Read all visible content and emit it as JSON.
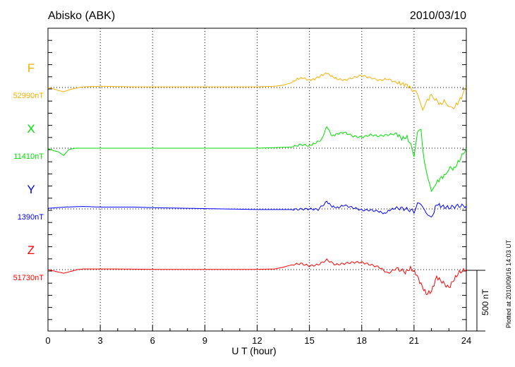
{
  "header": {
    "station": "Abisko (ABK)",
    "date": "2010/03/10"
  },
  "footer": {
    "plotted": "Plotted at 2010/09/16 14:03 UT"
  },
  "scale": {
    "label": "500 nT",
    "value_nT": 500
  },
  "chart_data": {
    "type": "line",
    "title": "Abisko (ABK)",
    "xlabel": "U T (hour)",
    "xlim": [
      0,
      24
    ],
    "xticks": [
      "0",
      "3",
      "6",
      "9",
      "12",
      "15",
      "18",
      "21",
      "24"
    ],
    "grid": "vertical dotted every 3 hours",
    "units": "nT deviation from baseline",
    "series": [
      {
        "name": "F",
        "baseline_label": "52990nT",
        "color": "#f5b000",
        "x": [
          0,
          0.3,
          0.6,
          0.9,
          1.2,
          1.6,
          2,
          3,
          5,
          8,
          10,
          12,
          13,
          13.5,
          14,
          14.3,
          14.6,
          15,
          15.3,
          15.7,
          16,
          16.3,
          16.6,
          17,
          17.5,
          18,
          18.5,
          19,
          19.5,
          20,
          20.3,
          20.6,
          20.9,
          21.1,
          21.3,
          21.5,
          21.7,
          22,
          22.2,
          22.5,
          22.8,
          23,
          23.2,
          23.5,
          23.8,
          24
        ],
        "y": [
          0,
          -10,
          -25,
          -35,
          -20,
          -5,
          5,
          10,
          5,
          5,
          5,
          5,
          10,
          20,
          40,
          70,
          80,
          60,
          70,
          100,
          120,
          90,
          70,
          60,
          80,
          100,
          80,
          60,
          70,
          40,
          30,
          20,
          -20,
          -40,
          -100,
          -170,
          -120,
          -60,
          -90,
          -140,
          -110,
          -150,
          -180,
          -130,
          -60,
          0
        ]
      },
      {
        "name": "X",
        "baseline_label": "11410nT",
        "color": "#00e000",
        "x": [
          0,
          0.3,
          0.6,
          0.9,
          1.2,
          1.6,
          2,
          4,
          6,
          8,
          10,
          12,
          13,
          14,
          14.5,
          15,
          15.3,
          15.7,
          16,
          16.3,
          16.6,
          17,
          17.5,
          18,
          18.5,
          19,
          19.5,
          20,
          20.3,
          20.6,
          20.9,
          21.0,
          21.2,
          21.4,
          21.5,
          21.6,
          21.8,
          22,
          22.2,
          22.5,
          22.8,
          23,
          23.3,
          23.6,
          24
        ],
        "y": [
          0,
          -20,
          -30,
          -60,
          -10,
          0,
          0,
          0,
          0,
          0,
          0,
          0,
          5,
          10,
          30,
          20,
          40,
          70,
          180,
          100,
          120,
          130,
          100,
          90,
          110,
          100,
          110,
          120,
          80,
          90,
          0,
          -60,
          120,
          150,
          0,
          -100,
          -250,
          -370,
          -300,
          -250,
          -220,
          -160,
          -170,
          -100,
          0
        ]
      },
      {
        "name": "Y",
        "baseline_label": "1390nT",
        "color": "#0000ff",
        "x": [
          0,
          0.5,
          1,
          2,
          3,
          4,
          5,
          6,
          8,
          10,
          12,
          13,
          14,
          15,
          15.5,
          16,
          16.3,
          16.6,
          17,
          17.5,
          18,
          18.5,
          19,
          19.3,
          19.6,
          20,
          20.5,
          21,
          21.2,
          21.4,
          21.6,
          21.8,
          22,
          22.3,
          22.6,
          23,
          23.5,
          24
        ],
        "y": [
          5,
          10,
          15,
          20,
          15,
          15,
          15,
          10,
          5,
          0,
          -5,
          -5,
          -5,
          0,
          -5,
          60,
          20,
          10,
          30,
          10,
          -10,
          -10,
          -20,
          -40,
          -10,
          10,
          0,
          -20,
          50,
          20,
          0,
          -40,
          -80,
          40,
          20,
          10,
          25,
          25
        ]
      },
      {
        "name": "Z",
        "baseline_label": "51730nT",
        "color": "#ff0000",
        "x": [
          0,
          0.3,
          0.6,
          0.9,
          1.3,
          1.7,
          2,
          4,
          6,
          8,
          10,
          12,
          13,
          13.5,
          14,
          14.5,
          15,
          15.5,
          16,
          16.5,
          17,
          17.5,
          18,
          18.5,
          19,
          19.5,
          20,
          20.5,
          20.8,
          21.1,
          21.4,
          21.7,
          22,
          22.3,
          22.6,
          23,
          23.3,
          23.6,
          24
        ],
        "y": [
          0,
          -10,
          -20,
          -30,
          -15,
          0,
          5,
          5,
          2,
          2,
          2,
          2,
          5,
          20,
          40,
          50,
          30,
          40,
          80,
          40,
          50,
          60,
          60,
          40,
          20,
          -30,
          10,
          -20,
          10,
          -30,
          -120,
          -200,
          -180,
          -60,
          -100,
          -150,
          -80,
          -20,
          0
        ]
      }
    ]
  }
}
